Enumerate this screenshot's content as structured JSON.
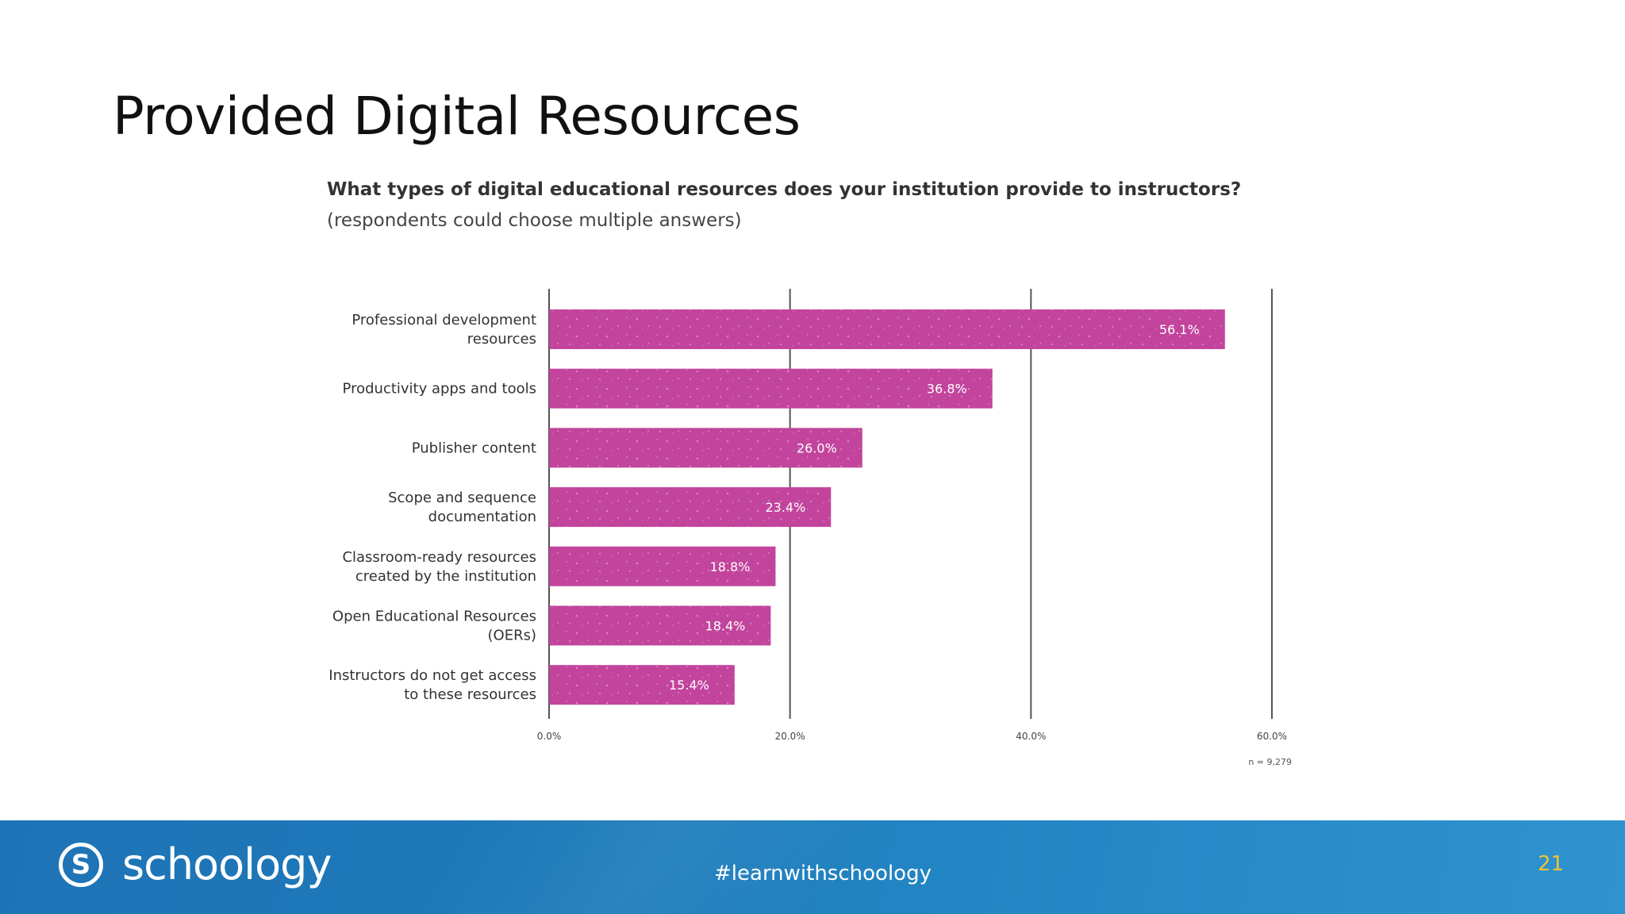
{
  "slide": {
    "title": "Provided Digital Resources",
    "page_number": "21"
  },
  "footer": {
    "brand": "schoology",
    "hashtag": "#learnwithschoology"
  },
  "colors": {
    "bar": "#c2449c",
    "footer": "#1e7ab8",
    "page_number": "#f2c233"
  },
  "chart_data": {
    "type": "bar",
    "orientation": "horizontal",
    "title": "What types of digital educational resources does your institution provide to instructors?",
    "subtitle": "(respondents could choose multiple answers)",
    "categories": [
      [
        "Professional development",
        "resources"
      ],
      [
        "Productivity apps and tools"
      ],
      [
        "Publisher content"
      ],
      [
        "Scope and sequence",
        "documentation"
      ],
      [
        "Classroom-ready resources",
        "created by the institution"
      ],
      [
        "Open Educational Resources",
        "(OERs)"
      ],
      [
        "Instructors do not get access",
        "to these resources"
      ]
    ],
    "values": [
      56.1,
      36.8,
      26.0,
      23.4,
      18.8,
      18.4,
      15.4
    ],
    "value_labels": [
      "56.1%",
      "36.8%",
      "26.0%",
      "23.4%",
      "18.8%",
      "18.4%",
      "15.4%"
    ],
    "xlim": [
      0,
      60
    ],
    "ticks": [
      0,
      20,
      40,
      60
    ],
    "tick_labels": [
      "0.0%",
      "20.0%",
      "40.0%",
      "60.0%"
    ],
    "grid": true,
    "note": "n = 9,279"
  }
}
